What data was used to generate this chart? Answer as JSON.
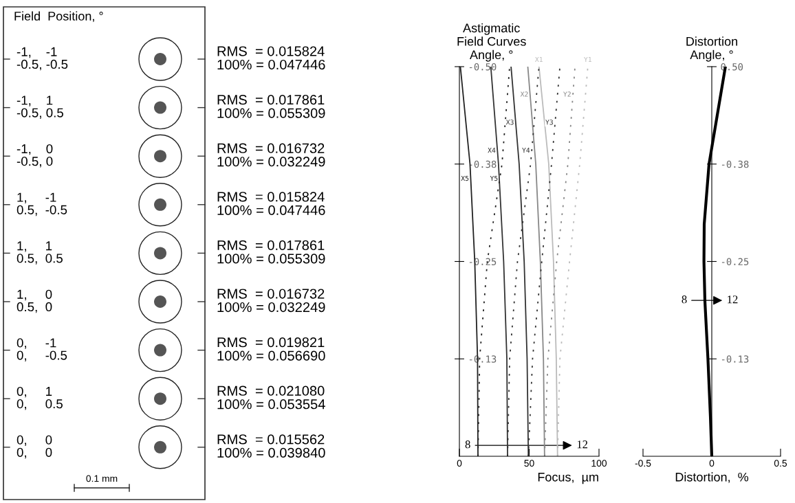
{
  "chart_data": [
    {
      "type": "other",
      "title": "Field  Position, °",
      "annotations": [
        "-1,    -1\n-0.5, -0.5",
        "RMS  = 0.015824\n100% = 0.047446",
        "-1,    1\n-0.5, 0.5",
        "RMS  = 0.017861\n100% = 0.055309",
        "-1,    0\n-0.5, 0",
        "RMS  = 0.016732\n100% = 0.032249",
        "1,     -1\n0.5,  -0.5",
        "RMS  = 0.015824\n100% = 0.047446",
        "1,     1\n0.5,  0.5",
        "RMS  = 0.017861\n100% = 0.055309",
        "1,     0\n0.5,  0",
        "RMS  = 0.016732\n100% = 0.032249",
        "0,     -1\n0,     -0.5",
        "RMS  = 0.019821\n100% = 0.056690",
        "0,     1\n0,     0.5",
        "RMS  = 0.021080\n100% = 0.053554",
        "0,     0\n0,     0",
        "RMS  = 0.015562\n100% = 0.039840",
        "0.1 mm"
      ]
    },
    {
      "type": "line",
      "title": "Astigmatic\nField Curves\nAngle, °",
      "xlabel": "Focus,  µm",
      "xlim": [
        0,
        100
      ],
      "xticks": [
        0,
        50,
        100
      ],
      "ylim": [
        0,
        -0.5
      ],
      "yticks": [
        {
          "value": -0.125,
          "label": "-0.13"
        },
        -0.25,
        {
          "value": -0.375,
          "label": "-0.38"
        },
        {
          "value": -0.5,
          "label": "-0.50"
        }
      ],
      "legend": false,
      "marker": "none",
      "series": [
        {
          "name": "X1",
          "color": "#bbbbbb",
          "line_style": "solid",
          "x": [
            70.3,
            69.4,
            67.4,
            64,
            57
          ],
          "values": [
            0,
            -0.125,
            -0.25,
            -0.375,
            -0.5
          ]
        },
        {
          "name": "X2",
          "color": "#888888",
          "line_style": "solid",
          "x": [
            61,
            60.2,
            58,
            54.7,
            49
          ],
          "values": [
            0,
            -0.125,
            -0.25,
            -0.375,
            -0.5
          ]
        },
        {
          "name": "X3",
          "color": "#333333",
          "line_style": "solid",
          "x": [
            49.4,
            48.5,
            46.4,
            42.8,
            37
          ],
          "values": [
            0,
            -0.125,
            -0.25,
            -0.375,
            -0.5
          ]
        },
        {
          "name": "X4",
          "color": "#333333",
          "line_style": "solid",
          "x": [
            34.5,
            34,
            31.7,
            28,
            22.5
          ],
          "values": [
            0,
            -0.125,
            -0.25,
            -0.375,
            -0.5
          ]
        },
        {
          "name": "X5",
          "color": "#222222",
          "line_style": "solid",
          "x": [
            13.3,
            13,
            11,
            7.6,
            0.7
          ],
          "values": [
            0,
            -0.125,
            -0.25,
            -0.375,
            -0.5
          ]
        },
        {
          "name": "Y1",
          "color": "#bbbbbb",
          "line_style": "dotted",
          "x": [
            70.3,
            72,
            78.9,
            86.2,
            92
          ],
          "values": [
            0,
            -0.125,
            -0.25,
            -0.375,
            -0.5
          ]
        },
        {
          "name": "Y2",
          "color": "#888888",
          "line_style": "dotted",
          "x": [
            61,
            63.4,
            69.7,
            77.7,
            82.8
          ],
          "values": [
            0,
            -0.125,
            -0.25,
            -0.375,
            -0.5
          ]
        },
        {
          "name": "Y3",
          "color": "#333333",
          "line_style": "dotted",
          "x": [
            49.4,
            52.4,
            59,
            66,
            72
          ],
          "values": [
            0,
            -0.125,
            -0.25,
            -0.375,
            -0.5
          ]
        },
        {
          "name": "Y4",
          "color": "#333333",
          "line_style": "dotted",
          "x": [
            34.5,
            36,
            41.6,
            51,
            57
          ],
          "values": [
            0,
            -0.125,
            -0.25,
            -0.375,
            -0.5
          ]
        },
        {
          "name": "Y5",
          "color": "#222222",
          "line_style": "dotted",
          "x": [
            13.3,
            14.5,
            20,
            30.5,
            36
          ],
          "values": [
            0,
            -0.125,
            -0.25,
            -0.375,
            -0.5
          ]
        }
      ],
      "annotations": [
        "8",
        "12"
      ]
    },
    {
      "type": "line",
      "title": "Distortion\nAngle, °",
      "xlabel": "Distortion,  %",
      "xlim": [
        -0.5,
        0.5
      ],
      "xticks": [
        -0.5,
        0,
        0.5
      ],
      "ylim": [
        0,
        -0.5
      ],
      "yticks": [
        {
          "value": -0.125,
          "label": "-0.13"
        },
        -0.25,
        {
          "value": -0.375,
          "label": "-0.38"
        },
        {
          "value": -0.5,
          "label": "0.50"
        }
      ],
      "legend": false,
      "marker": "none",
      "series": [
        {
          "color": "#000000",
          "line_style": "solid",
          "x": [
            0,
            -0.01,
            -0.028,
            -0.05,
            -0.057,
            -0.055,
            -0.02,
            0,
            0.099
          ],
          "values": [
            0,
            -0.051,
            -0.125,
            -0.199,
            -0.25,
            -0.298,
            -0.375,
            -0.396,
            -0.5
          ]
        }
      ],
      "annotations": [
        "8",
        "12"
      ]
    }
  ]
}
